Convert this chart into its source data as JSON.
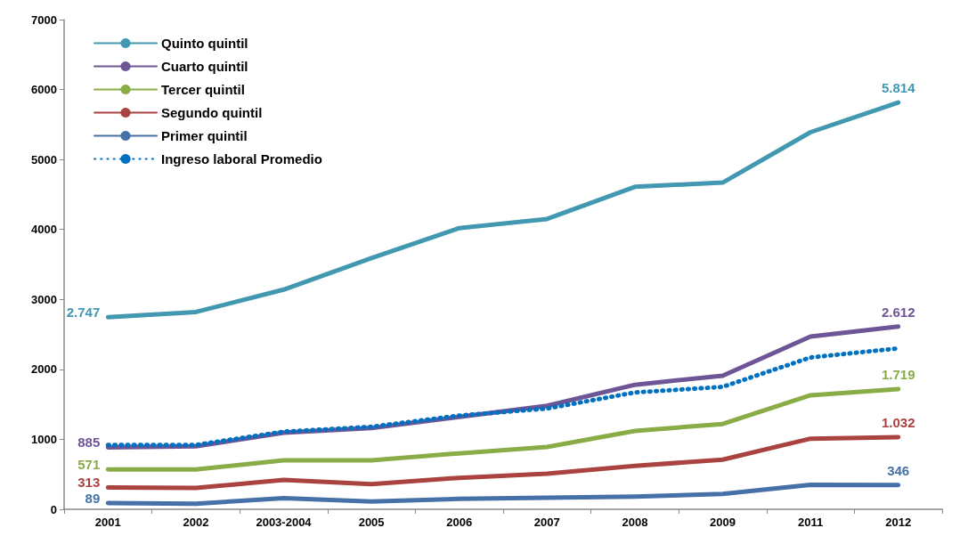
{
  "chart_data": {
    "type": "line",
    "categories": [
      "2001",
      "2002",
      "2003-2004",
      "2005",
      "2006",
      "2007",
      "2008",
      "2009",
      "2011",
      "2012"
    ],
    "series": [
      {
        "name": "Quinto quintil",
        "color": "#4198b0",
        "values": [
          2747,
          2820,
          3140,
          3590,
          4020,
          4150,
          4610,
          4670,
          5390,
          5814
        ],
        "value_labels": [
          "2.747",
          null,
          null,
          null,
          null,
          null,
          null,
          null,
          null,
          "5.814"
        ]
      },
      {
        "name": "Cuarto quintil",
        "color": "#6e5596",
        "values": [
          885,
          900,
          1094,
          1160,
          1320,
          1480,
          1780,
          1910,
          2470,
          2612
        ],
        "value_labels": [
          "885",
          null,
          null,
          null,
          null,
          null,
          null,
          null,
          null,
          "2.612"
        ]
      },
      {
        "name": "Tercer quintil",
        "color": "#8aac47",
        "values": [
          571,
          570,
          700,
          700,
          800,
          890,
          1120,
          1220,
          1630,
          1719
        ],
        "value_labels": [
          "571",
          null,
          null,
          null,
          null,
          null,
          null,
          null,
          null,
          "1.719"
        ]
      },
      {
        "name": "Segundo quintil",
        "color": "#aa4240",
        "values": [
          313,
          305,
          420,
          360,
          450,
          510,
          620,
          710,
          1010,
          1032
        ],
        "value_labels": [
          "313",
          null,
          null,
          null,
          null,
          null,
          null,
          null,
          null,
          "1.032"
        ]
      },
      {
        "name": "Primer quintil",
        "color": "#4570a8",
        "values": [
          89,
          80,
          160,
          110,
          150,
          165,
          180,
          220,
          350,
          346
        ],
        "value_labels": [
          "89",
          null,
          null,
          null,
          null,
          null,
          null,
          null,
          null,
          "346"
        ]
      },
      {
        "name": "Ingreso laboral Promedio",
        "color": "#0070c0",
        "line_style": "dotted",
        "values": [
          920,
          920,
          1110,
          1180,
          1340,
          1440,
          1670,
          1750,
          2170,
          2300
        ]
      }
    ],
    "ylim": [
      0,
      7000
    ],
    "yticks": [
      0,
      1000,
      2000,
      3000,
      4000,
      5000,
      6000,
      7000
    ],
    "grid": false,
    "legend": "top left",
    "marker": "none"
  }
}
